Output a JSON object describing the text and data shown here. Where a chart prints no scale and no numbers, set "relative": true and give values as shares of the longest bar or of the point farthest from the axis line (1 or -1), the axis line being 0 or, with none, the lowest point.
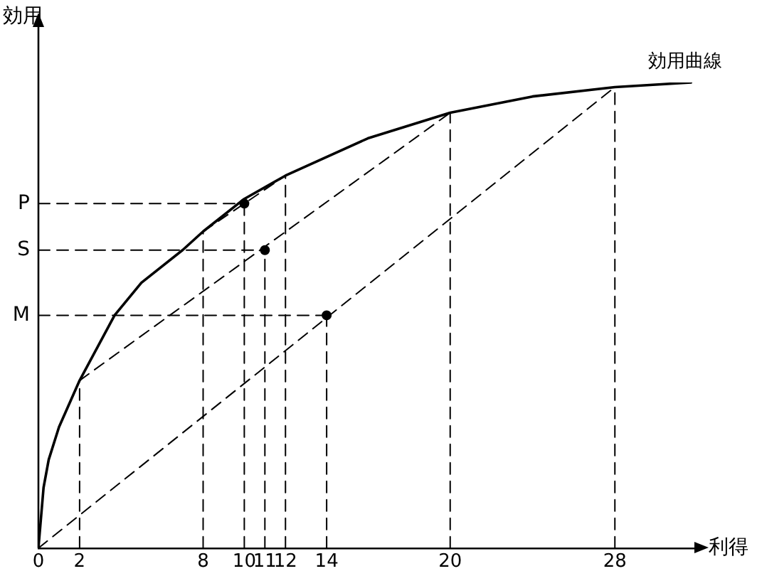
{
  "chart_data": {
    "type": "line",
    "relative": true,
    "xlabel": "利得",
    "ylabel": "効用",
    "xlim": [
      0,
      32
    ],
    "xticks": [
      0,
      2,
      8,
      10,
      11,
      12,
      14,
      20,
      28
    ],
    "grid": false,
    "legend": false,
    "series": [
      {
        "name": "効用曲線",
        "color": "#000000",
        "line_style": "solid",
        "x": [
          0,
          0.25,
          0.5,
          1,
          2,
          3.7,
          5,
          7,
          8,
          10,
          12,
          16,
          20,
          24,
          28,
          31.7
        ],
        "values": [
          0,
          0.13,
          0.19,
          0.26,
          0.36,
          0.5,
          0.57,
          0.64,
          0.68,
          0.75,
          0.8,
          0.88,
          0.935,
          0.97,
          0.99,
          1
        ]
      },
      {
        "type": "line",
        "color": "#000000",
        "line_style": "dashed",
        "x": [
          0,
          28
        ],
        "values": [
          0,
          0.99
        ]
      },
      {
        "type": "line",
        "color": "#000000",
        "line_style": "dashed",
        "x": [
          2,
          20
        ],
        "values": [
          0.36,
          0.935
        ]
      },
      {
        "type": "line",
        "color": "#000000",
        "line_style": "dashed",
        "x": [
          8,
          12
        ],
        "values": [
          0.68,
          0.8
        ]
      },
      {
        "name": "P",
        "type": "line",
        "color": "#000000",
        "line_style": "dashed",
        "x": [
          0,
          10
        ],
        "values": [
          0.74,
          0.74
        ]
      },
      {
        "name": "S",
        "type": "line",
        "color": "#000000",
        "line_style": "dashed",
        "x": [
          0,
          11
        ],
        "values": [
          0.64,
          0.64
        ]
      },
      {
        "name": "M",
        "type": "line",
        "color": "#000000",
        "line_style": "dashed",
        "x": [
          0,
          14
        ],
        "values": [
          0.5,
          0.5
        ]
      },
      {
        "type": "line",
        "color": "#000000",
        "line_style": "dashed",
        "x": [
          2,
          2
        ],
        "values": [
          0,
          0.36
        ]
      },
      {
        "type": "line",
        "color": "#000000",
        "line_style": "dashed",
        "x": [
          8,
          8
        ],
        "values": [
          0,
          0.68
        ]
      },
      {
        "type": "line",
        "color": "#000000",
        "line_style": "dashed",
        "x": [
          10,
          10
        ],
        "values": [
          0,
          0.74
        ]
      },
      {
        "type": "line",
        "color": "#000000",
        "line_style": "dashed",
        "x": [
          11,
          11
        ],
        "values": [
          0,
          0.64
        ]
      },
      {
        "type": "line",
        "color": "#000000",
        "line_style": "dashed",
        "x": [
          12,
          12
        ],
        "values": [
          0,
          0.8
        ]
      },
      {
        "type": "line",
        "color": "#000000",
        "line_style": "dashed",
        "x": [
          14,
          14
        ],
        "values": [
          0,
          0.5
        ]
      },
      {
        "type": "line",
        "color": "#000000",
        "line_style": "dashed",
        "x": [
          20,
          20
        ],
        "values": [
          0,
          0.935
        ]
      },
      {
        "type": "line",
        "color": "#000000",
        "line_style": "dashed",
        "x": [
          28,
          28
        ],
        "values": [
          0,
          0.99
        ]
      },
      {
        "type": "scatter",
        "color": "#000000",
        "marker": "circle",
        "x": [
          10,
          11,
          14
        ],
        "values": [
          0.74,
          0.64,
          0.5
        ]
      }
    ]
  }
}
